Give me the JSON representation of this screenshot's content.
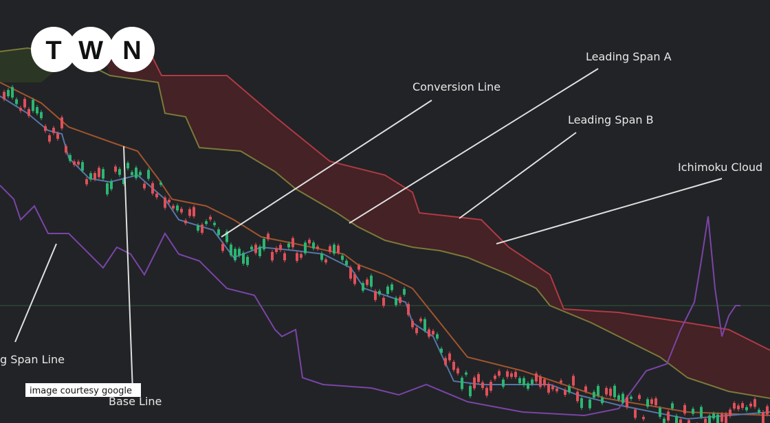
{
  "logo": {
    "letters": [
      "T",
      "W",
      "N"
    ]
  },
  "annotations": {
    "conversion_line": "Conversion Line",
    "leading_span_a": "Leading Span A",
    "leading_span_b": "Leading Span B",
    "ichimoku_cloud": "Ichimoku Cloud",
    "lagging_span_line": "g Span Line",
    "base_line": "Base Line"
  },
  "credit": "image courtesy google"
}
